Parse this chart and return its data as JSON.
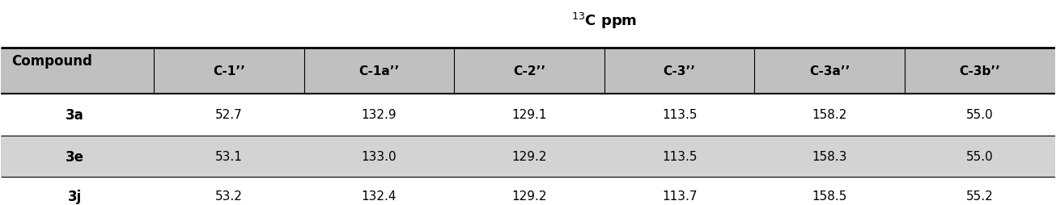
{
  "title": "$^{13}$C ppm",
  "col_header": [
    "C-1’’",
    "C-1a’’",
    "C-2’’",
    "C-3’’",
    "C-3a’’",
    "C-3b’’"
  ],
  "row_labels": [
    "3a",
    "3e",
    "3j"
  ],
  "data": [
    [
      "52.7",
      "132.9",
      "129.1",
      "113.5",
      "158.2",
      "55.0"
    ],
    [
      "53.1",
      "133.0",
      "129.2",
      "113.5",
      "158.3",
      "55.0"
    ],
    [
      "53.2",
      "132.4",
      "129.2",
      "113.7",
      "158.5",
      "55.2"
    ]
  ],
  "row_shaded": [
    false,
    true,
    false
  ],
  "header_bg": "#C0C0C0",
  "shaded_bg": "#D3D3D3",
  "white_bg": "#FFFFFF",
  "fig_bg": "#FFFFFF",
  "text_color": "#000000",
  "compound_label": "Compound"
}
